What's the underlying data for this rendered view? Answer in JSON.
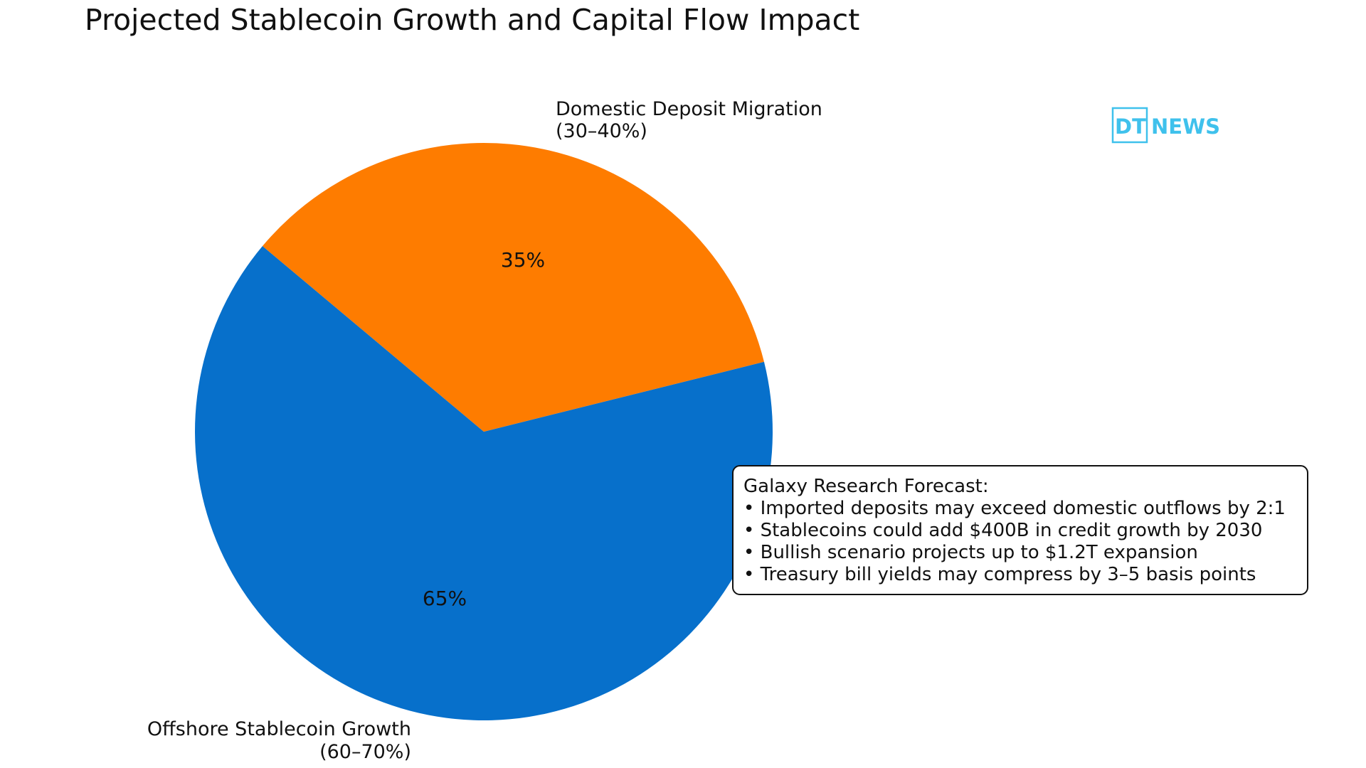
{
  "chart_data": {
    "type": "pie",
    "title": "Projected Stablecoin Growth and Capital Flow Impact",
    "slices": [
      {
        "label_line1": "Offshore Stablecoin Growth",
        "label_line2": "(60–70%)",
        "value": 65,
        "pct_label": "65%",
        "color": "#0770cb"
      },
      {
        "label_line1": "Domestic Deposit Migration",
        "label_line2": "(30–40%)",
        "value": 35,
        "pct_label": "35%",
        "color": "#fe7c00"
      }
    ],
    "start_angle_deg": 140,
    "direction": "counterclockwise",
    "annotation": {
      "title": "Galaxy Research Forecast:",
      "bullets": [
        "• Imported deposits may exceed domestic outflows by 2:1",
        "• Stablecoins could add $400B in credit growth by 2030",
        "• Bullish scenario projects up to $1.2T expansion",
        "• Treasury bill yields may compress by 3–5 basis points"
      ]
    }
  },
  "logo": {
    "part1": "DT",
    "part2": "NEWS",
    "color": "#3fc1ec"
  }
}
